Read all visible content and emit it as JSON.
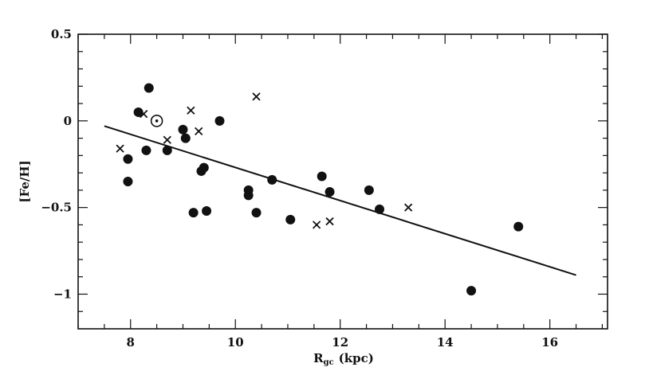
{
  "chart_data": {
    "type": "scatter",
    "title": "",
    "xlabel": "R",
    "xlabel_sub": "gc",
    "xlabel_unit": "(kpc)",
    "ylabel": "[Fe/H]",
    "xlim": [
      7,
      17.1
    ],
    "ylim": [
      -1.2,
      0.5
    ],
    "xticks_major": [
      8,
      10,
      12,
      14,
      16
    ],
    "xticks_major_labels": [
      "8",
      "10",
      "12",
      "14",
      "16"
    ],
    "xticks_minor_step": 0.5,
    "yticks_major": [
      0.5,
      0,
      -0.5,
      -1
    ],
    "yticks_major_labels": [
      "0.5",
      "0",
      "-0.5",
      "-1"
    ],
    "yticks_minor_step": 0.1,
    "grid": false,
    "series": [
      {
        "marker": "filled-circle",
        "x": [
          8.15,
          8.35,
          7.95,
          7.95,
          8.3,
          8.7,
          9.0,
          9.05,
          9.2,
          9.35,
          9.4,
          9.45,
          9.7,
          10.25,
          10.25,
          10.4,
          10.7,
          11.05,
          11.65,
          11.8,
          12.55,
          12.75,
          14.5,
          15.4
        ],
        "y": [
          0.05,
          0.19,
          -0.22,
          -0.35,
          -0.17,
          -0.17,
          -0.05,
          -0.1,
          -0.53,
          -0.29,
          -0.27,
          -0.52,
          0.0,
          -0.4,
          -0.43,
          -0.53,
          -0.34,
          -0.57,
          -0.32,
          -0.41,
          -0.4,
          -0.51,
          -0.98,
          -0.61
        ]
      },
      {
        "marker": "cross",
        "x": [
          7.8,
          8.25,
          8.7,
          9.15,
          9.3,
          10.4,
          11.55,
          11.8,
          13.3
        ],
        "y": [
          -0.16,
          0.04,
          -0.11,
          0.06,
          -0.06,
          0.14,
          -0.6,
          -0.58,
          -0.5
        ]
      },
      {
        "marker": "sun",
        "x": [
          8.5
        ],
        "y": [
          0.0
        ]
      }
    ],
    "fit_line": {
      "x": [
        7.5,
        16.5
      ],
      "y": [
        -0.03,
        -0.89
      ]
    }
  }
}
